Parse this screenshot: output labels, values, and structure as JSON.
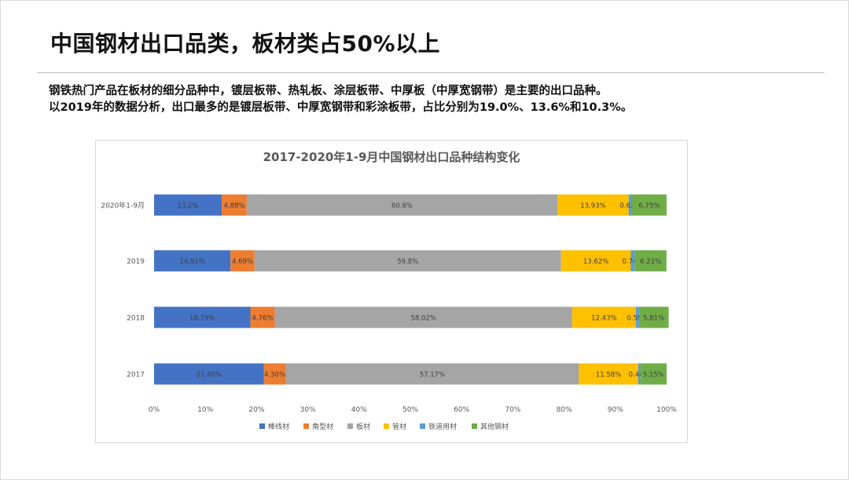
{
  "page": {
    "title": "中国钢材出口品类，板材类占50%以上",
    "desc_line1": "钢铁热门产品在板材的细分品种中，镀层板带、热轧板、涂层板带、中厚板（中厚宽钢带）是主要的出口品种。",
    "desc_line2": "以2019年的数据分析，出口最多的是镀层板带、中厚宽钢带和彩涂板带，占比分别为19.0%、13.6%和10.3%。"
  },
  "chart_data": {
    "type": "bar",
    "orientation": "horizontal",
    "stacked": "100%",
    "title": "2017-2020年1-9月中国钢材出口品种结构变化",
    "categories": [
      "2020年1-9月",
      "2019",
      "2018",
      "2017"
    ],
    "series": [
      {
        "name": "棒线材",
        "color": "#4472c4",
        "values": [
          13.2,
          14.91,
          18.79,
          21.4
        ],
        "labels": [
          "13.2%",
          "14.91%",
          "18.79%",
          "21.40%"
        ]
      },
      {
        "name": "角型材",
        "color": "#ed7d31",
        "values": [
          4.88,
          4.69,
          4.76,
          4.3
        ],
        "labels": [
          "4.88%",
          "4.69%",
          "4.76%",
          "4.30%"
        ]
      },
      {
        "name": "板材",
        "color": "#a5a5a5",
        "values": [
          60.6,
          59.8,
          58.02,
          57.17
        ],
        "labels": [
          "60.6%",
          "59.8%",
          "58.02%",
          "57.17%"
        ]
      },
      {
        "name": "管材",
        "color": "#ffc000",
        "values": [
          13.93,
          13.62,
          12.43,
          11.58
        ],
        "labels": [
          "13.93%",
          "13.62%",
          "12.43%",
          "11.58%"
        ]
      },
      {
        "name": "铁道用材",
        "color": "#5b9bd5",
        "values": [
          0.63,
          0.74,
          0.59,
          0.4
        ],
        "labels": [
          "0.63%",
          "0.74%",
          "0.59%",
          "0.40%"
        ]
      },
      {
        "name": "其他钢材",
        "color": "#70ad47",
        "values": [
          6.75,
          6.21,
          5.81,
          5.15
        ],
        "labels": [
          "6.75%",
          "6.21%",
          "5.81%",
          "5.15%"
        ]
      }
    ],
    "xlim": [
      0,
      100
    ],
    "xticks": [
      "0%",
      "10%",
      "20%",
      "30%",
      "40%",
      "50%",
      "60%",
      "70%",
      "80%",
      "90%",
      "100%"
    ],
    "legend_position": "bottom",
    "grid": false
  }
}
